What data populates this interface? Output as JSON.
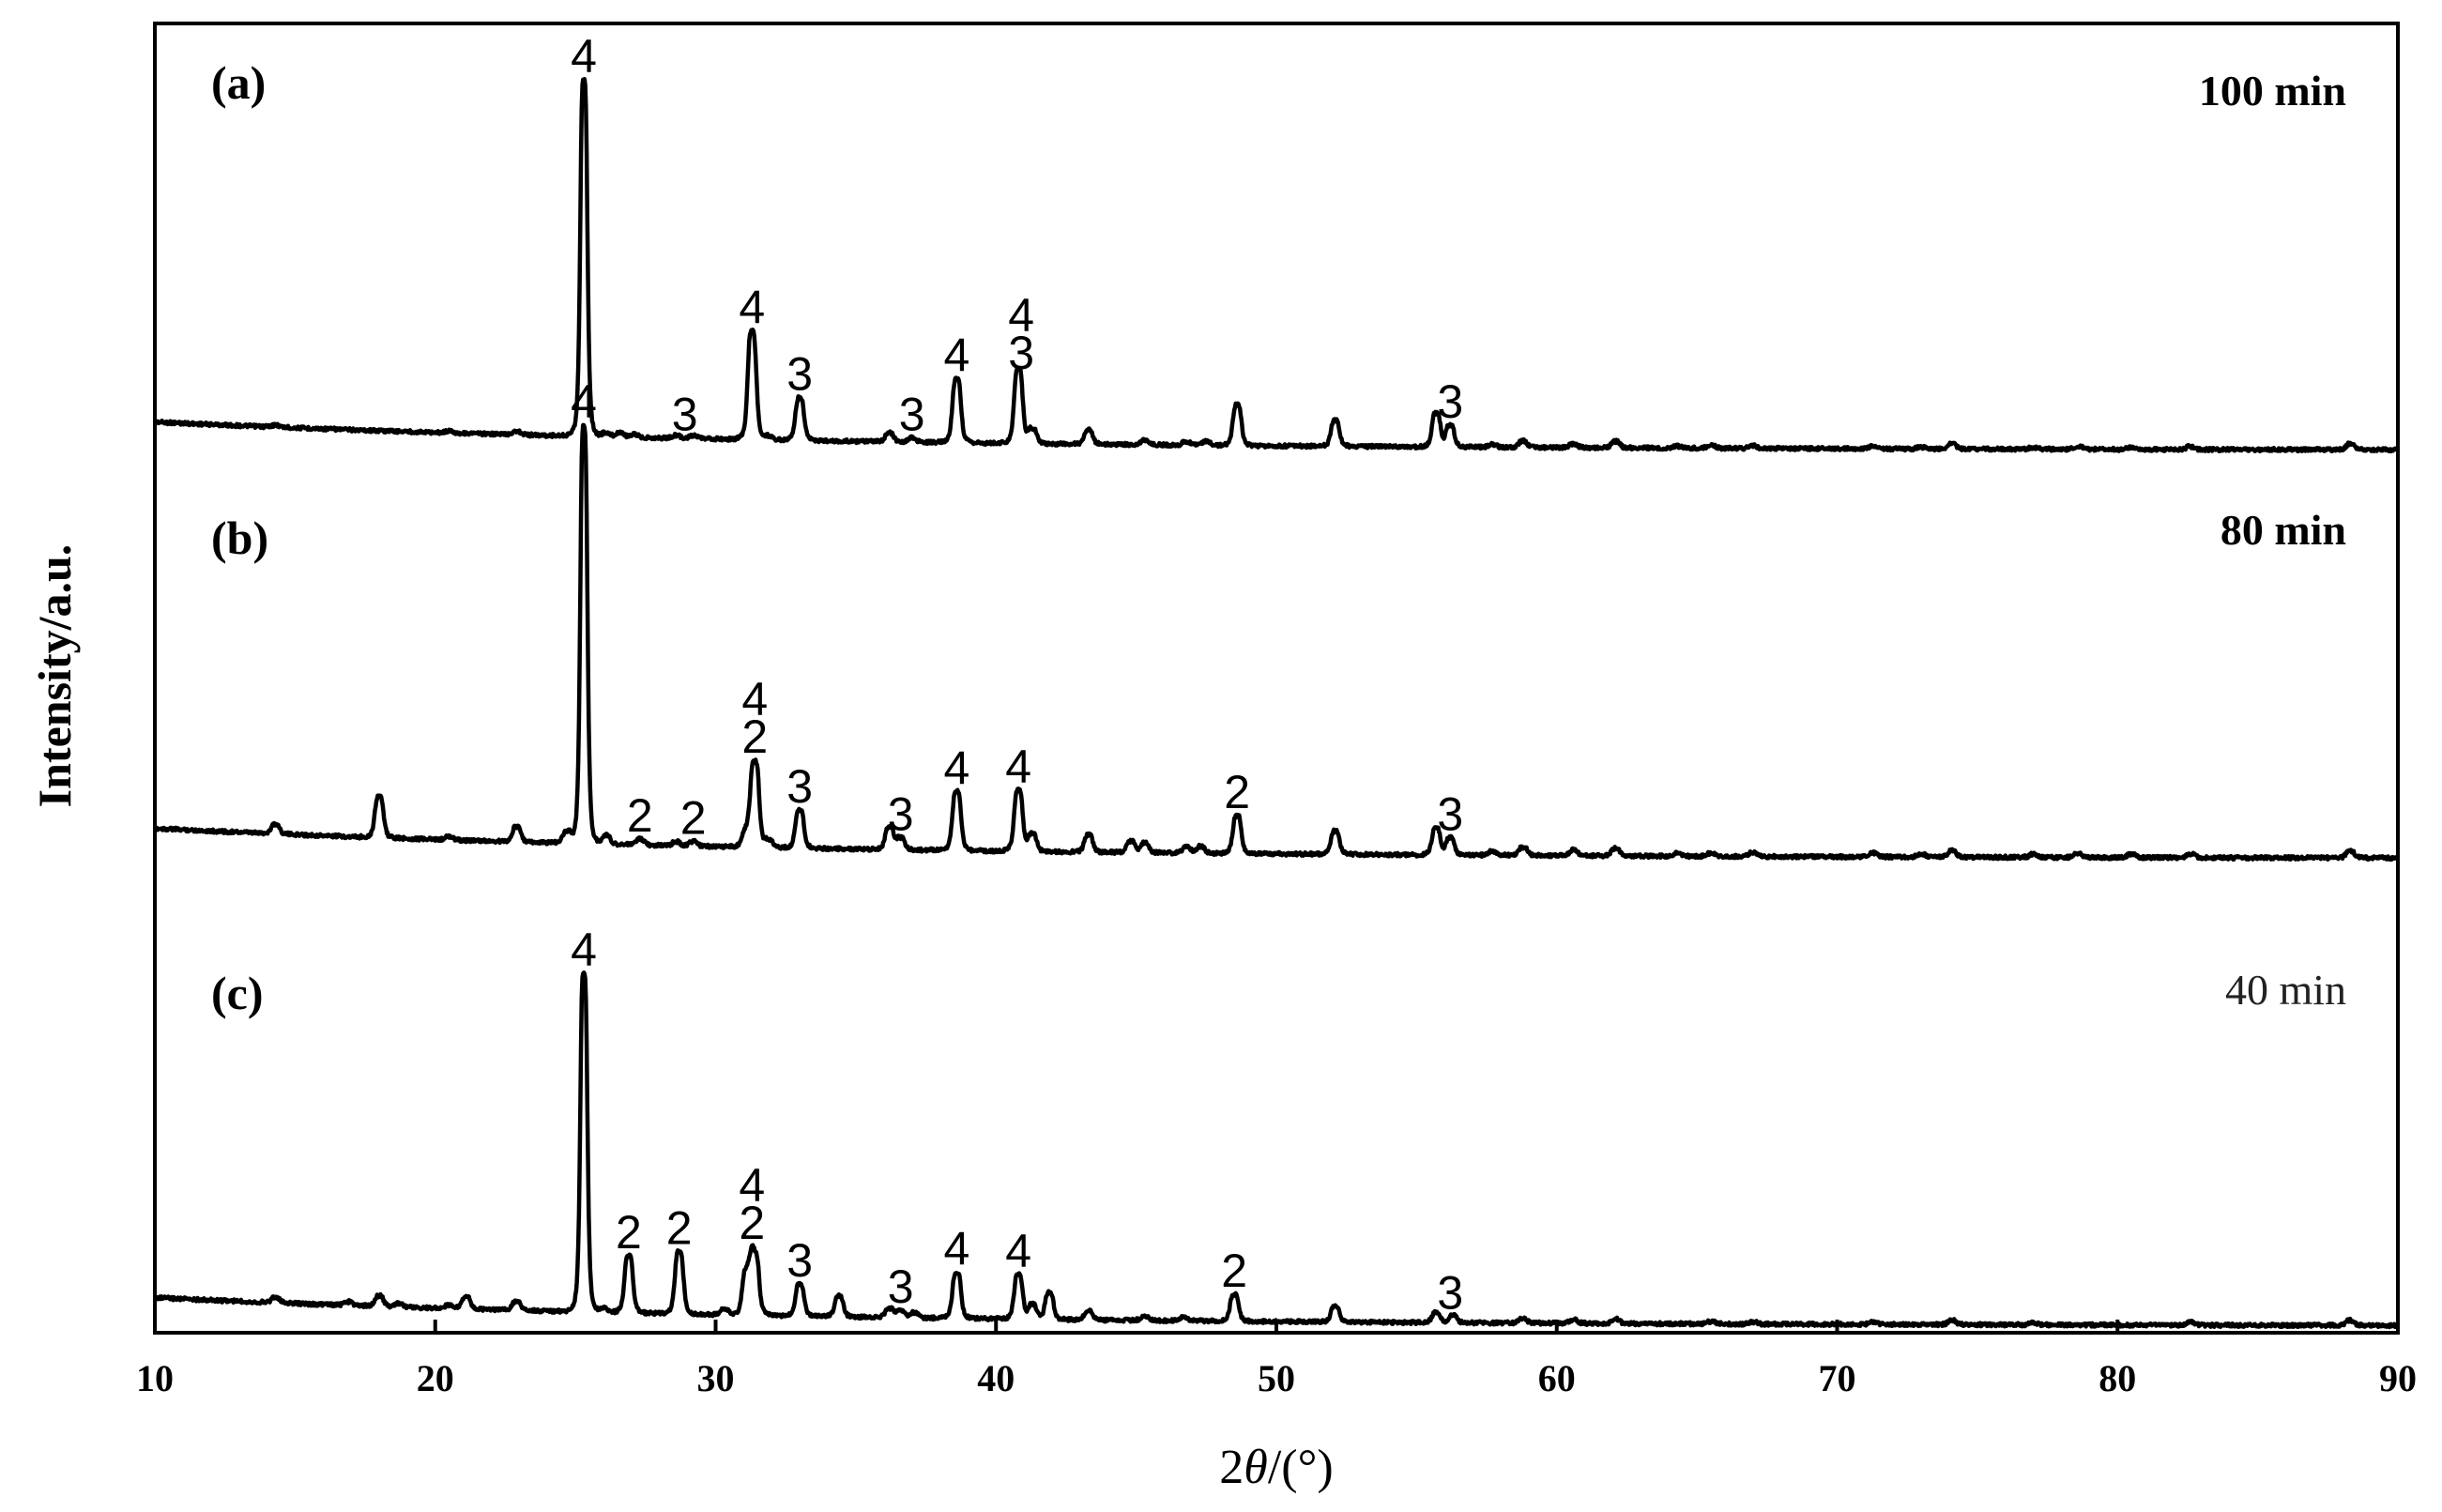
{
  "chart_data": {
    "type": "line",
    "xlabel_prefix": "2",
    "xlabel_symbol": "θ",
    "xlabel_suffix": "/(°)",
    "ylabel": "Intensity/a.u.",
    "xlim": [
      10,
      90
    ],
    "xticks": [
      "10",
      "20",
      "30",
      "40",
      "50",
      "60",
      "70",
      "80",
      "90"
    ],
    "grid": false,
    "stacked": true,
    "panels": [
      {
        "label": "(a)",
        "time": "100 min",
        "time_bold": true,
        "baseline": {
          "start": 100,
          "end": 20
        },
        "peaks": [
          [
            14.3,
            5
          ],
          [
            20.5,
            5
          ],
          [
            22.9,
            10
          ],
          [
            25.3,
            1000
          ],
          [
            26.1,
            10
          ],
          [
            26.6,
            12
          ],
          [
            27.1,
            8
          ],
          [
            28.6,
            8
          ],
          [
            29.2,
            8
          ],
          [
            31.3,
            305
          ],
          [
            31.9,
            10
          ],
          [
            33.0,
            120
          ],
          [
            36.2,
            25
          ],
          [
            37.0,
            12
          ],
          [
            38.6,
            180
          ],
          [
            40.8,
            210
          ],
          [
            41.3,
            40
          ],
          [
            43.3,
            42
          ],
          [
            45.3,
            12
          ],
          [
            46.8,
            10
          ],
          [
            47.5,
            12
          ],
          [
            48.6,
            115
          ],
          [
            52.1,
            72
          ],
          [
            55.7,
            95
          ],
          [
            56.2,
            60
          ],
          [
            57.7,
            8
          ],
          [
            58.8,
            18
          ],
          [
            60.6,
            10
          ],
          [
            62.1,
            18
          ],
          [
            64.3,
            5
          ],
          [
            65.5,
            8
          ],
          [
            67.0,
            8
          ],
          [
            71.3,
            8
          ],
          [
            73.0,
            5
          ],
          [
            74.1,
            16
          ],
          [
            77.0,
            5
          ],
          [
            78.6,
            8
          ],
          [
            80.5,
            5
          ],
          [
            82.6,
            8
          ],
          [
            88.3,
            16
          ]
        ]
      },
      {
        "label": "(b)",
        "time": "80 min",
        "time_bold": true,
        "baseline": {
          "start": 100,
          "end": 20
        },
        "peaks": [
          [
            14.3,
            25
          ],
          [
            18.0,
            110
          ],
          [
            20.5,
            8
          ],
          [
            22.9,
            40
          ],
          [
            24.7,
            30
          ],
          [
            25.3,
            1100
          ],
          [
            26.1,
            22
          ],
          [
            27.3,
            15
          ],
          [
            28.6,
            10
          ],
          [
            29.2,
            12
          ],
          [
            31.1,
            40
          ],
          [
            31.4,
            225
          ],
          [
            31.9,
            18
          ],
          [
            33.0,
            100
          ],
          [
            36.2,
            60
          ],
          [
            36.6,
            30
          ],
          [
            38.6,
            155
          ],
          [
            40.8,
            160
          ],
          [
            41.3,
            45
          ],
          [
            43.3,
            45
          ],
          [
            44.8,
            30
          ],
          [
            45.3,
            25
          ],
          [
            46.8,
            15
          ],
          [
            47.3,
            18
          ],
          [
            48.6,
            100
          ],
          [
            52.1,
            62
          ],
          [
            55.7,
            70
          ],
          [
            56.2,
            45
          ],
          [
            57.7,
            10
          ],
          [
            58.8,
            22
          ],
          [
            60.6,
            15
          ],
          [
            62.1,
            20
          ],
          [
            64.3,
            8
          ],
          [
            65.5,
            8
          ],
          [
            67.0,
            10
          ],
          [
            71.3,
            10
          ],
          [
            73.0,
            8
          ],
          [
            74.1,
            18
          ],
          [
            77.0,
            8
          ],
          [
            78.6,
            10
          ],
          [
            80.5,
            8
          ],
          [
            82.6,
            10
          ],
          [
            88.3,
            18
          ]
        ]
      },
      {
        "label": "(c)",
        "time": "40 min",
        "time_bold": false,
        "baseline": {
          "start": 90,
          "end": 10
        },
        "peaks": [
          [
            14.3,
            15
          ],
          [
            16.9,
            10
          ],
          [
            18.0,
            30
          ],
          [
            18.7,
            10
          ],
          [
            20.5,
            10
          ],
          [
            21.1,
            35
          ],
          [
            22.9,
            25
          ],
          [
            25.3,
            950
          ],
          [
            26.0,
            10
          ],
          [
            26.9,
            160
          ],
          [
            28.7,
            175
          ],
          [
            30.3,
            18
          ],
          [
            31.1,
            120
          ],
          [
            31.4,
            170
          ],
          [
            33.0,
            90
          ],
          [
            34.4,
            60
          ],
          [
            36.2,
            25
          ],
          [
            36.6,
            20
          ],
          [
            37.1,
            15
          ],
          [
            38.6,
            130
          ],
          [
            40.8,
            125
          ],
          [
            41.3,
            40
          ],
          [
            41.9,
            75
          ],
          [
            43.3,
            25
          ],
          [
            45.3,
            12
          ],
          [
            46.7,
            10
          ],
          [
            48.5,
            75
          ],
          [
            52.1,
            45
          ],
          [
            55.7,
            30
          ],
          [
            56.3,
            20
          ],
          [
            58.8,
            12
          ],
          [
            60.6,
            10
          ],
          [
            62.1,
            12
          ],
          [
            65.5,
            6
          ],
          [
            67.0,
            6
          ],
          [
            71.3,
            8
          ],
          [
            74.1,
            12
          ],
          [
            77.0,
            6
          ],
          [
            82.6,
            8
          ],
          [
            88.3,
            14
          ]
        ]
      }
    ],
    "peak_labels": [
      {
        "panel": 0,
        "x": 25.3,
        "text": "4"
      },
      {
        "panel": 0,
        "x": 28.9,
        "text": "3"
      },
      {
        "panel": 0,
        "x": 31.3,
        "text": "4"
      },
      {
        "panel": 0,
        "x": 33.0,
        "text": "3"
      },
      {
        "panel": 0,
        "x": 37.0,
        "text": "3"
      },
      {
        "panel": 0,
        "x": 38.6,
        "text": "4"
      },
      {
        "panel": 0,
        "x": 40.9,
        "text": "4",
        "stack": 2
      },
      {
        "panel": 0,
        "x": 40.9,
        "text": "3",
        "stack": 1
      },
      {
        "panel": 0,
        "x": 56.2,
        "text": "3"
      },
      {
        "panel": 1,
        "x": 25.3,
        "text": "4"
      },
      {
        "panel": 1,
        "x": 27.3,
        "text": "2"
      },
      {
        "panel": 1,
        "x": 29.2,
        "text": "2"
      },
      {
        "panel": 1,
        "x": 31.4,
        "text": "4",
        "stack": 2
      },
      {
        "panel": 1,
        "x": 31.4,
        "text": "2",
        "stack": 1
      },
      {
        "panel": 1,
        "x": 33.0,
        "text": "3"
      },
      {
        "panel": 1,
        "x": 36.6,
        "text": "3"
      },
      {
        "panel": 1,
        "x": 38.6,
        "text": "4"
      },
      {
        "panel": 1,
        "x": 40.8,
        "text": "4"
      },
      {
        "panel": 1,
        "x": 48.6,
        "text": "2"
      },
      {
        "panel": 1,
        "x": 56.2,
        "text": "3"
      },
      {
        "panel": 2,
        "x": 25.3,
        "text": "4"
      },
      {
        "panel": 2,
        "x": 26.9,
        "text": "2"
      },
      {
        "panel": 2,
        "x": 28.7,
        "text": "2"
      },
      {
        "panel": 2,
        "x": 31.3,
        "text": "4",
        "stack": 2
      },
      {
        "panel": 2,
        "x": 31.3,
        "text": "2",
        "stack": 1
      },
      {
        "panel": 2,
        "x": 33.0,
        "text": "3"
      },
      {
        "panel": 2,
        "x": 36.6,
        "text": "3"
      },
      {
        "panel": 2,
        "x": 38.6,
        "text": "4"
      },
      {
        "panel": 2,
        "x": 40.8,
        "text": "4"
      },
      {
        "panel": 2,
        "x": 48.5,
        "text": "2"
      },
      {
        "panel": 2,
        "x": 56.2,
        "text": "3"
      }
    ]
  }
}
